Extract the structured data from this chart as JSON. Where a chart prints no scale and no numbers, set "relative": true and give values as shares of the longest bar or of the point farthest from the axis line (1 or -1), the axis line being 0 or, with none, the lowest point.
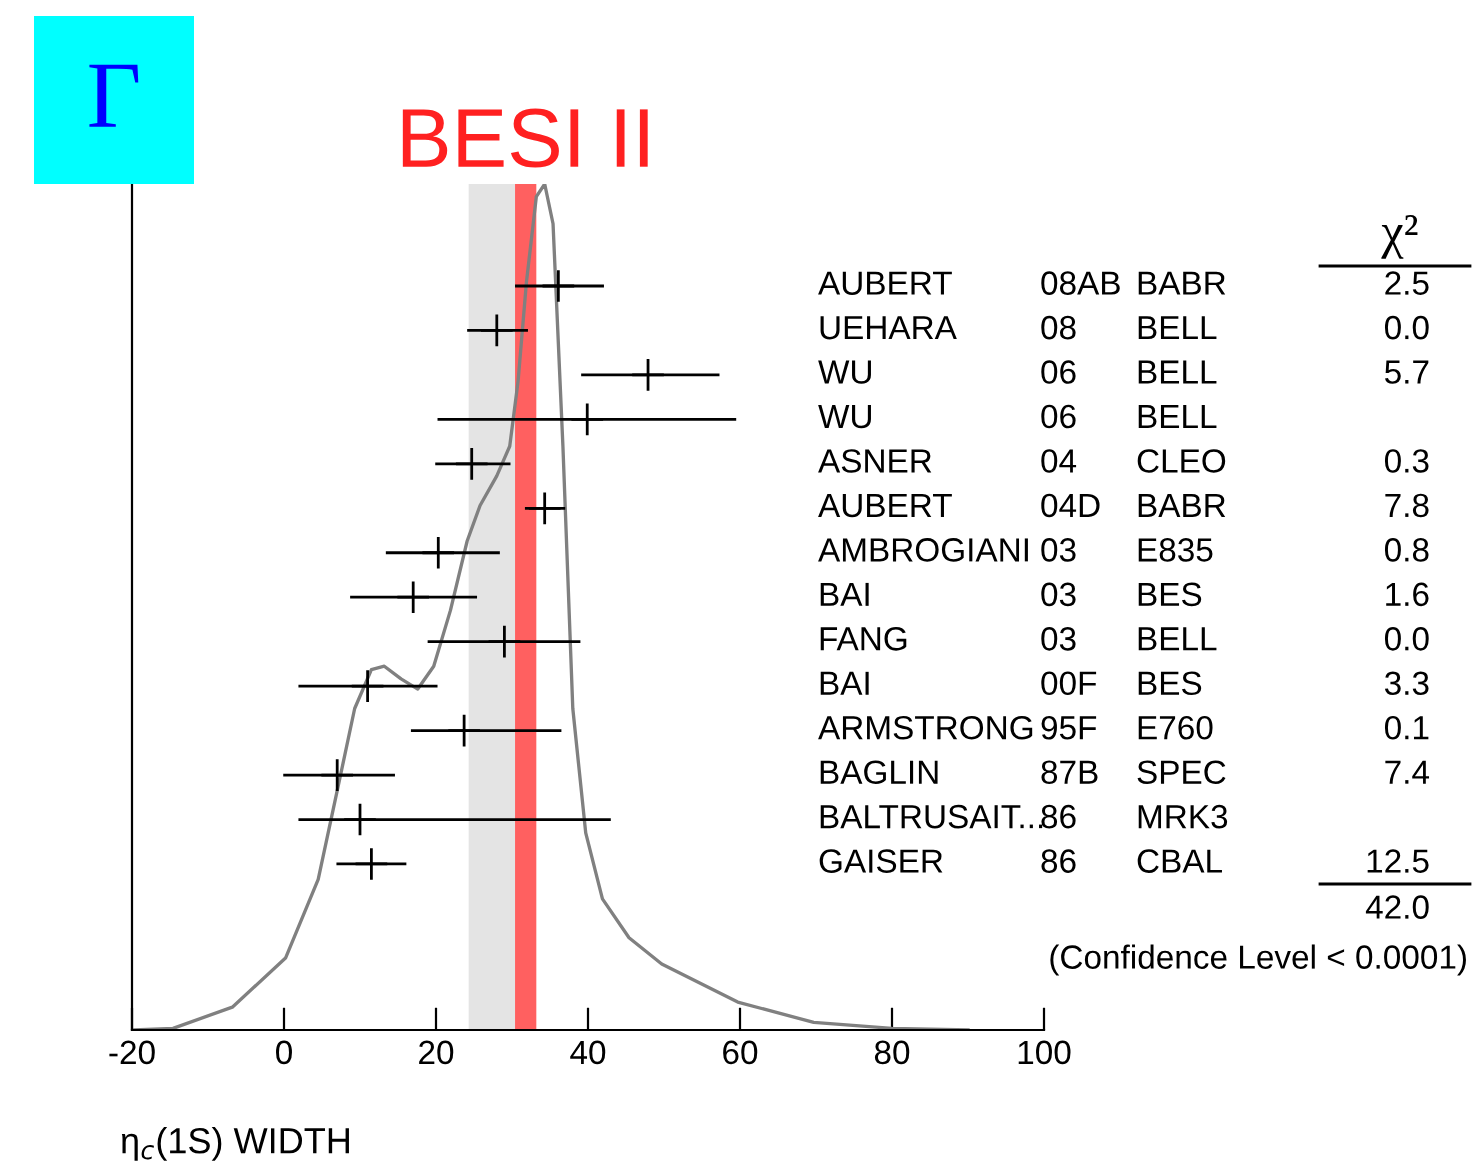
{
  "chart_data": [
    {
      "type": "line",
      "title": "Γ",
      "xlabel": "η$_{c}$(1S) WIDTH",
      "relative": true,
      "tick_labels": "x",
      "x": [
        -19.8,
        -14.6,
        -6.8,
        0.2,
        4.5,
        7.1,
        9.3,
        11.5,
        13.2,
        15.4,
        17.6,
        19.7,
        21.9,
        24.1,
        25.8,
        28.0,
        29.7,
        30.8,
        31.9,
        33.2,
        34.3,
        35.4,
        36.7,
        38.0,
        39.7,
        41.9,
        45.4,
        49.7,
        59.7,
        69.7,
        80,
        90
      ],
      "series": [
        {
          "color": "#808080",
          "values": [
            0,
            0.002,
            0.027,
            0.085,
            0.178,
            0.287,
            0.38,
            0.426,
            0.43,
            0.415,
            0.403,
            0.43,
            0.496,
            0.578,
            0.62,
            0.655,
            0.69,
            0.767,
            0.884,
            0.985,
            1.0,
            0.953,
            0.69,
            0.38,
            0.233,
            0.155,
            0.109,
            0.078,
            0.033,
            0.009,
            0.002,
            0
          ]
        }
      ],
      "xlim": [
        -20,
        100
      ],
      "xticks": [
        -20,
        0,
        20,
        40,
        60,
        80,
        100
      ],
      "bands": [
        {
          "axis": "x",
          "from": 24.3,
          "to": 30.4,
          "color": "#e4e4e4"
        },
        {
          "axis": "x",
          "from": 30.4,
          "to": 33.2,
          "color": "#ff6060",
          "label": "BESI II"
        }
      ]
    },
    {
      "type": "scatter",
      "orientation": "horizontal",
      "tick_labels": false,
      "marker": "cross",
      "categories": [
        "AUBERT",
        "UEHARA",
        "WU",
        "WU",
        "ASNER",
        "AUBERT",
        "AMBROGIANI",
        "BAI",
        "FANG",
        "BAI",
        "ARMSTRONG",
        "BAGLIN",
        "BALTRUSAIT...",
        "GAISER"
      ],
      "values": [
        36.1,
        28.0,
        47.9,
        39.9,
        24.7,
        34.3,
        20.3,
        17.0,
        29.0,
        11.0,
        23.7,
        7.0,
        10.0,
        11.5
      ],
      "errors": [
        [
          30.4,
          42.1
        ],
        [
          24.1,
          32.1
        ],
        [
          39.1,
          57.3
        ],
        [
          20.2,
          59.5
        ],
        [
          19.9,
          29.8
        ],
        [
          31.7,
          37.0
        ],
        [
          13.4,
          28.4
        ],
        [
          8.7,
          25.4
        ],
        [
          18.9,
          39.0
        ],
        [
          1.9,
          20.2
        ],
        [
          16.7,
          36.5
        ],
        [
          -0.1,
          14.6
        ],
        [
          1.9,
          43.0
        ],
        [
          6.9,
          16.1
        ]
      ],
      "xlim": [
        -20,
        100
      ],
      "xticks": [
        -20,
        0,
        20,
        40,
        60,
        80,
        100
      ],
      "annotations": [
        "08AB",
        "BABR",
        "2.5",
        "08",
        "BELL",
        "0.0",
        "06",
        "BELL",
        "5.7",
        "06",
        "BELL",
        null,
        "04",
        "CLEO",
        "0.3",
        "04D",
        "BABR",
        "7.8",
        "03",
        "E835",
        "0.8",
        "03",
        "BES",
        "1.6",
        "03",
        "BELL",
        "0.0",
        "00F",
        "BES",
        "3.3",
        "95F",
        "E760",
        "0.1",
        "87B",
        "SPEC",
        "7.4",
        "86",
        "MRK3",
        null,
        "86",
        "CBAL",
        "12.5",
        "χ²",
        "42.0",
        "(Confidence Level < 0.0001)"
      ]
    }
  ]
}
